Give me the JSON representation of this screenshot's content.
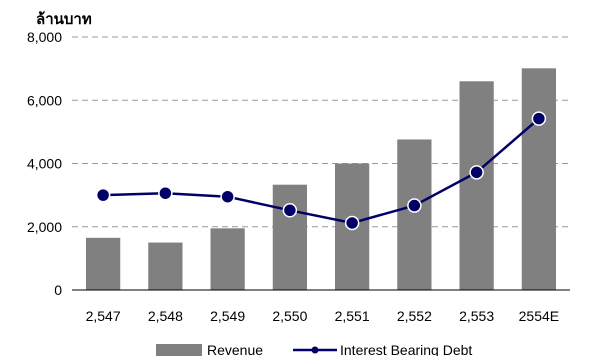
{
  "chart_data": {
    "type": "bar",
    "ylabel": "ล้านบาท",
    "categories": [
      "2,547",
      "2,548",
      "2,549",
      "2,550",
      "2,551",
      "2,552",
      "2,553",
      "2554E"
    ],
    "ylim": [
      0,
      8000
    ],
    "yticks": [
      "0",
      "2,000",
      "4,000",
      "6,000",
      "8,000"
    ],
    "grid": "horizontal dashed",
    "legend_position": "bottom",
    "series": [
      {
        "name": "Revenue",
        "type": "bar",
        "color": "#808080",
        "values": [
          1650,
          1500,
          1950,
          3330,
          4000,
          4760,
          6600,
          7010
        ]
      },
      {
        "name": "Interest Bearing Debt",
        "type": "line",
        "color": "#000066",
        "values": [
          3000,
          3060,
          2950,
          2520,
          2120,
          2670,
          3720,
          5420
        ]
      }
    ]
  }
}
